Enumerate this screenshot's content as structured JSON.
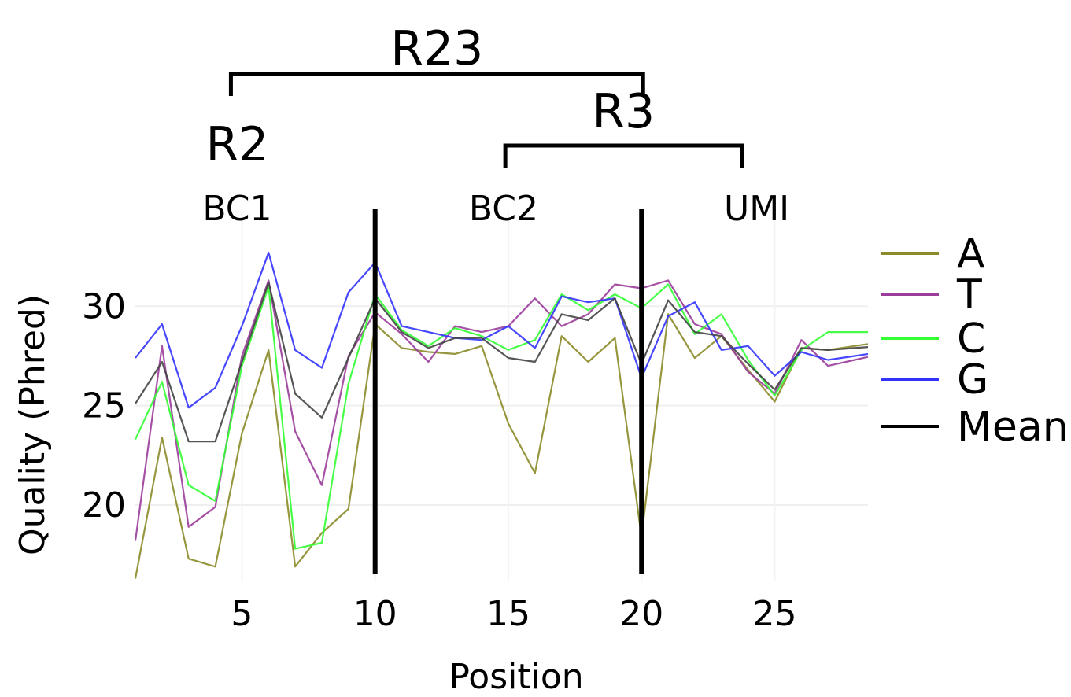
{
  "chart_data": {
    "type": "line",
    "xlabel": "Position",
    "ylabel": "Quality (Phred)",
    "xlim": [
      1,
      28.5
    ],
    "ylim": [
      16.2,
      34.8
    ],
    "xticks": [
      5,
      10,
      15,
      20,
      25
    ],
    "yticks": [
      20,
      25,
      30
    ],
    "grid": true,
    "legend_position": "right",
    "x": [
      1,
      2,
      3,
      4,
      5,
      6,
      7,
      8,
      9,
      10,
      11,
      12,
      13,
      14,
      15,
      16,
      17,
      18,
      19,
      20,
      21,
      22,
      23,
      24,
      25,
      26,
      27,
      28,
      29
    ],
    "series": [
      {
        "name": "A",
        "color": "#8b8b2a",
        "values": [
          16.3,
          23.4,
          17.3,
          16.9,
          23.6,
          27.8,
          16.9,
          18.6,
          19.8,
          29.1,
          27.9,
          27.7,
          27.6,
          28.0,
          24.1,
          21.6,
          28.5,
          27.2,
          28.4,
          18.4,
          29.6,
          27.4,
          28.5,
          26.8,
          25.2,
          27.9,
          27.8,
          28.0,
          28.2
        ]
      },
      {
        "name": "T",
        "color": "#9b3d9b",
        "values": [
          18.2,
          28.0,
          18.9,
          19.9,
          27.5,
          31.3,
          23.7,
          21.0,
          27.5,
          29.7,
          28.6,
          27.2,
          29.0,
          28.7,
          29.0,
          30.4,
          29.0,
          29.6,
          31.1,
          30.9,
          31.3,
          29.1,
          28.6,
          26.7,
          25.6,
          28.3,
          27.0,
          27.3,
          27.6
        ]
      },
      {
        "name": "C",
        "color": "#33ff33",
        "values": [
          23.3,
          26.2,
          21.0,
          20.2,
          27.0,
          31.0,
          17.8,
          18.1,
          26.1,
          30.6,
          28.8,
          28.0,
          28.9,
          28.5,
          27.8,
          28.3,
          30.6,
          29.8,
          30.6,
          29.9,
          31.1,
          28.6,
          29.6,
          27.3,
          25.5,
          27.8,
          28.7,
          28.7,
          28.7
        ]
      },
      {
        "name": "G",
        "color": "#3333ff",
        "values": [
          27.4,
          29.1,
          24.9,
          25.9,
          29.0,
          32.7,
          27.8,
          26.9,
          30.7,
          32.2,
          29.0,
          28.7,
          28.4,
          28.3,
          29.0,
          27.9,
          30.5,
          30.2,
          30.4,
          26.4,
          29.5,
          30.2,
          27.8,
          28.0,
          26.5,
          27.7,
          27.3,
          27.5,
          27.7
        ]
      },
      {
        "name": "Mean",
        "color": "#444444",
        "values": [
          25.1,
          27.2,
          23.2,
          23.2,
          27.2,
          31.2,
          25.6,
          24.4,
          27.4,
          30.4,
          28.7,
          27.9,
          28.4,
          28.4,
          27.4,
          27.2,
          29.6,
          29.3,
          30.4,
          27.1,
          30.3,
          28.7,
          28.5,
          27.1,
          25.8,
          27.9,
          27.8,
          27.9,
          28.0
        ]
      }
    ],
    "regions": [
      {
        "label": "BC1",
        "label_x": 5
      },
      {
        "label": "BC2",
        "label_x": 15
      },
      {
        "label": "UMI",
        "label_x": 24.5
      }
    ],
    "dividers": [
      10,
      20
    ],
    "brackets": [
      {
        "label": "R23",
        "x_start": 5,
        "x_end": 20
      },
      {
        "label": "R3",
        "x_start": 15.3,
        "x_end": 23.7
      }
    ],
    "read_labels": [
      {
        "label": "R2",
        "x": 5
      }
    ]
  }
}
